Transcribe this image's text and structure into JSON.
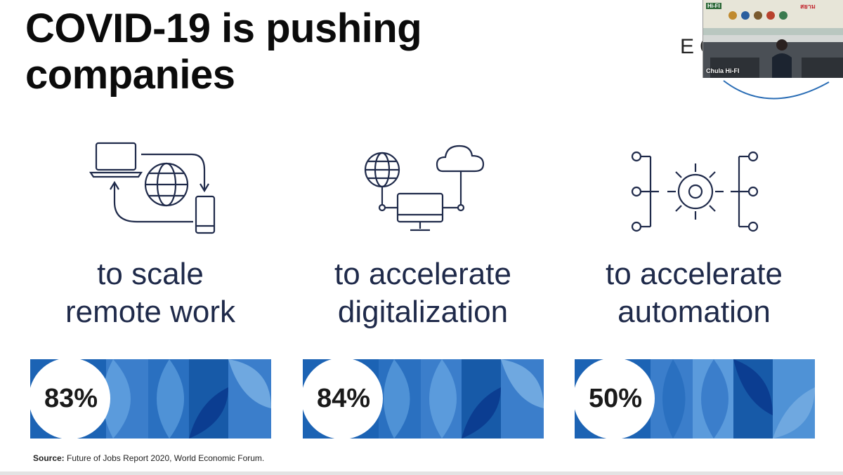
{
  "slide": {
    "title_line1": "COVID-19 is pushing",
    "title_line2": "companies",
    "logo_fragment": "EC"
  },
  "columns": [
    {
      "icon": "remote-work-icon",
      "caption_line1": "to scale",
      "caption_line2": "remote work",
      "stat": "83%"
    },
    {
      "icon": "digitalization-icon",
      "caption_line1": "to accelerate",
      "caption_line2": "digitalization",
      "stat": "84%"
    },
    {
      "icon": "automation-icon",
      "caption_line1": "to accelerate",
      "caption_line2": "automation",
      "stat": "50%"
    }
  ],
  "source": {
    "label": "Source:",
    "text": "Future of Jobs Report 2020, World Economic Forum."
  },
  "video_overlay": {
    "participant_name": "Chula Hi-FI",
    "banner_text": "Hi-FI",
    "brand_text": "สยาม"
  },
  "colors": {
    "title": "#0b0b0b",
    "caption": "#1f2a4a",
    "banner_blue": "#1c63b4",
    "banner_light": "#5b9bdc",
    "banner_dark": "#0b3d91",
    "icon_stroke": "#1f2a4a"
  }
}
